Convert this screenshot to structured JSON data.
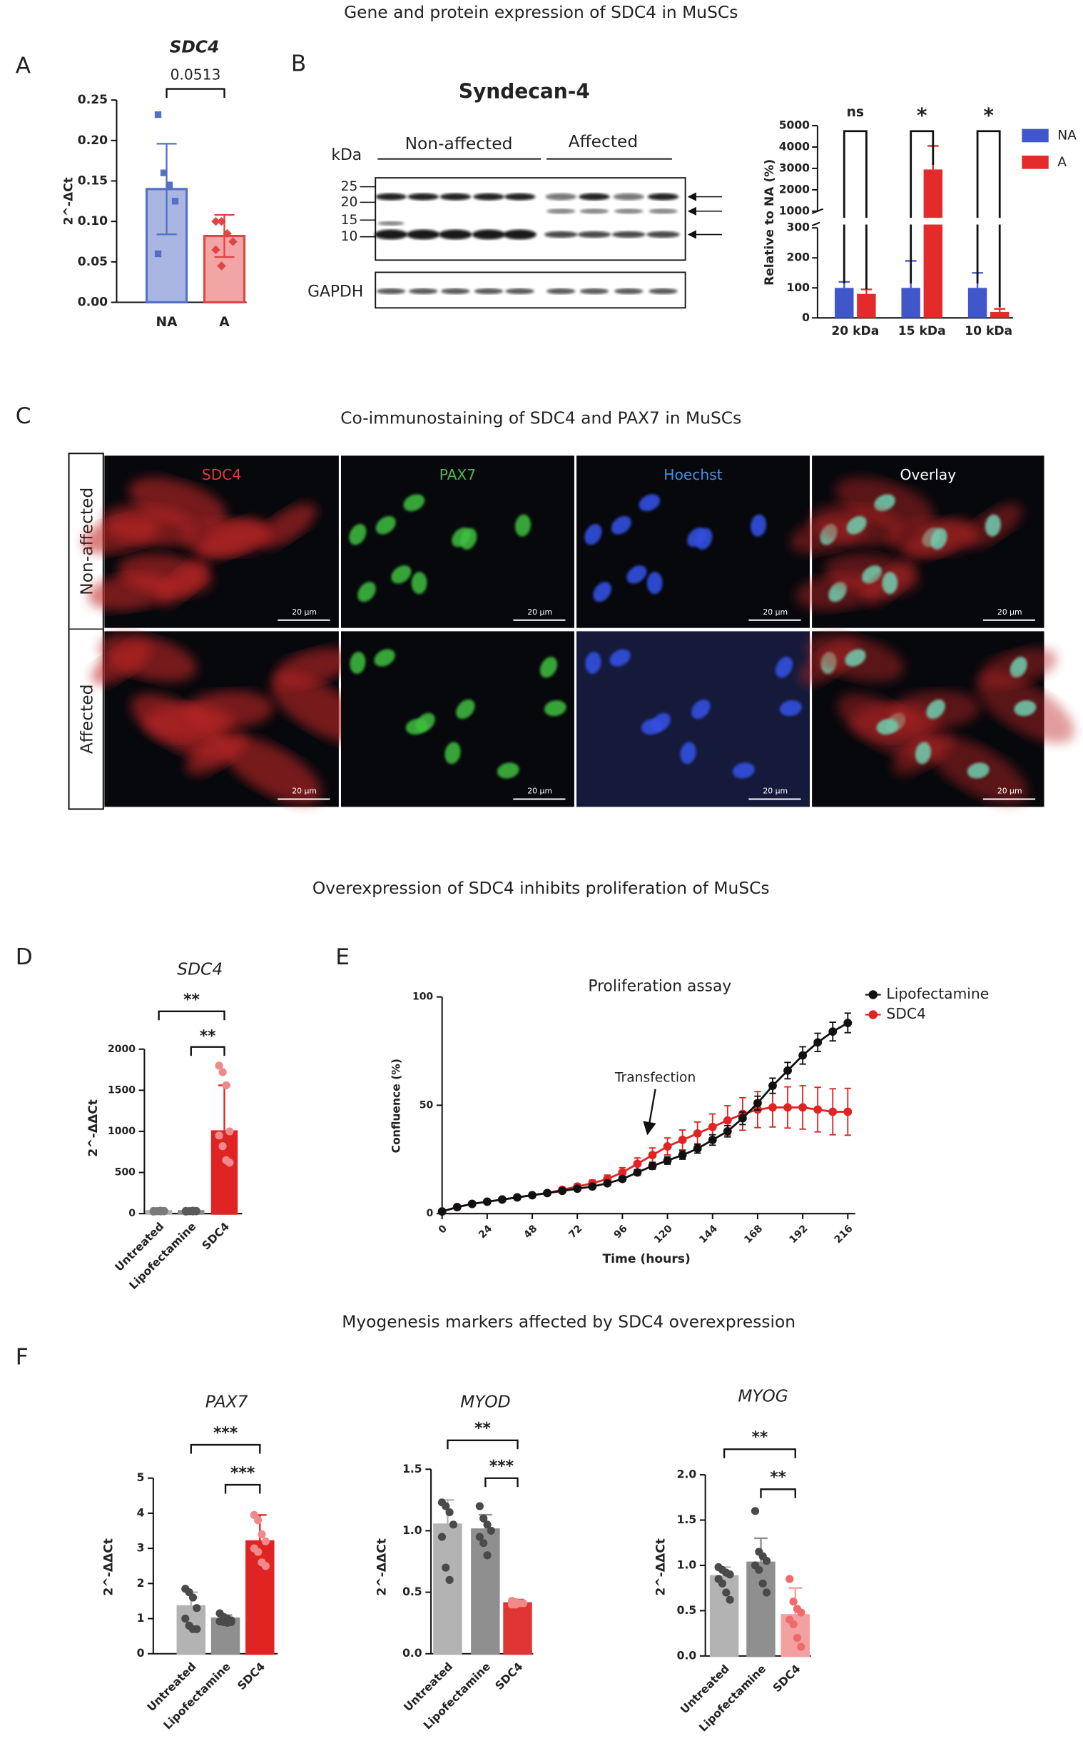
{
  "sections": [
    "Gene  and protein expression of SDC4 in MuSCs",
    "Co-immunostaining of SDC4 and PAX7 in MuSCs",
    "Overexpression of SDC4 inhibits proliferation of MuSCs",
    "Myogenesis markers affected by SDC4 overexpression"
  ],
  "panels": [
    "A",
    "B",
    "C",
    "D",
    "E",
    "F"
  ],
  "blot": {
    "title": "Syndecan-4",
    "unit": "kDa",
    "groups": [
      "Non-affected",
      "Affected"
    ],
    "markers": [
      25,
      20,
      15,
      10
    ],
    "loading": "GAPDH"
  },
  "images": {
    "channels": [
      "SDC4",
      "PAX7",
      "Hoechst",
      "Overlay"
    ],
    "rows": [
      "Non-affected",
      "Affected"
    ],
    "scale_bar": "20 µm"
  },
  "chart_data": [
    {
      "type": "bar",
      "title": "SDC4",
      "ylabel": "2^-ΔCt",
      "categories": [
        "NA",
        "A"
      ],
      "values": [
        0.14,
        0.082
      ],
      "errors": [
        0.056,
        0.026
      ],
      "points": [
        [
          0.232,
          0.16,
          0.145,
          0.125,
          0.06
        ],
        [
          0.1,
          0.1,
          0.085,
          0.075,
          0.065,
          0.045
        ]
      ],
      "colors": [
        "#a9b6e2",
        "#f2a5a5"
      ],
      "edgecolors": [
        "#5470c6",
        "#e04545"
      ],
      "point_colors": [
        "#5470c6",
        "#e04545"
      ],
      "annotations": [
        "0.0513"
      ],
      "ylim": [
        0,
        0.25
      ],
      "yticks": [
        {
          "value": 0,
          "label": "0.00"
        },
        0.05,
        {
          "value": 0.1,
          "label": "0.10"
        },
        0.15,
        {
          "value": 0.2,
          "label": "0.20"
        },
        0.25
      ]
    },
    {
      "type": "broken_bar",
      "ylabel": "Relative to  NA (%)",
      "categories": [
        "20 kDa",
        "15 kDa",
        "10 kDa"
      ],
      "series": [
        {
          "name": "NA",
          "color": "#3f57c8",
          "values": [
            100,
            100,
            100
          ],
          "errors": [
            20,
            90,
            50
          ]
        },
        {
          "name": "A",
          "color": "#e32b2b",
          "values": [
            80,
            2950,
            20
          ],
          "errors": [
            15,
            1100,
            10
          ]
        }
      ],
      "annotations": [
        "ns",
        "*",
        "*"
      ],
      "ylim_segments": [
        [
          0,
          300
        ],
        [
          1000,
          5000
        ]
      ],
      "yticks": [
        0,
        100,
        200,
        300,
        1000,
        2000,
        3000,
        4000,
        5000
      ]
    },
    {
      "type": "bar",
      "title": "SDC4",
      "ylabel": "2^-ΔΔCt",
      "categories": [
        "Untreated",
        "Lipofectamine",
        "SDC4"
      ],
      "values": [
        30,
        30,
        1000
      ],
      "errors": [
        8,
        8,
        560
      ],
      "points": [
        [
          25,
          30,
          35,
          28,
          32,
          30,
          27,
          33
        ],
        [
          25,
          30,
          35,
          28,
          32,
          30,
          27,
          33
        ],
        [
          1800,
          1720,
          1560,
          1000,
          950,
          820,
          650,
          620
        ]
      ],
      "colors": [
        "#b0b0b0",
        "#8c8c8c",
        "#e02424"
      ],
      "edgecolors": [
        "#b0b0b0",
        "#8c8c8c",
        "#e02424"
      ],
      "point_colors": [
        "#7a7a7a",
        "#5a5a5a",
        "#f08a8a"
      ],
      "annotations": [
        "**",
        "**"
      ],
      "ylim": [
        0,
        2000
      ],
      "yticks": [
        0,
        500,
        1000,
        1500,
        2000
      ]
    },
    {
      "type": "line",
      "title": "Proliferation assay",
      "xlabel": "Time (hours)",
      "ylabel": "Confluence (%)",
      "annotation": "Transfection",
      "x": [
        0,
        8,
        16,
        24,
        32,
        40,
        48,
        56,
        64,
        72,
        80,
        88,
        96,
        104,
        112,
        120,
        128,
        136,
        144,
        152,
        160,
        168,
        176,
        184,
        192,
        200,
        208,
        216
      ],
      "series": [
        {
          "name": "Lipofectamine",
          "color": "#111111",
          "values": [
            1,
            3,
            4.5,
            5.5,
            6.5,
            7.5,
            8.5,
            9.5,
            10.5,
            11.5,
            12.5,
            14,
            16,
            19,
            22,
            24.5,
            27,
            30,
            34,
            38,
            44,
            51,
            59,
            66,
            73,
            79,
            84,
            88
          ],
          "errors": [
            0.3,
            0.5,
            0.5,
            0.5,
            0.6,
            0.6,
            0.7,
            0.7,
            0.8,
            0.8,
            0.9,
            1,
            1.1,
            1.3,
            1.5,
            1.7,
            1.9,
            2.1,
            2.4,
            2.6,
            2.9,
            3.2,
            3.5,
            3.8,
            4,
            4.2,
            4.3,
            4.5
          ]
        },
        {
          "name": "SDC4",
          "color": "#e02424",
          "values": [
            1,
            3,
            4.5,
            5.5,
            6.5,
            7.5,
            8.5,
            9.5,
            11,
            12.5,
            14,
            16,
            19,
            23,
            27,
            31,
            34,
            37,
            40,
            43,
            46,
            48,
            49,
            49,
            49,
            48,
            47,
            47
          ],
          "errors": [
            0.3,
            0.5,
            0.5,
            0.5,
            0.6,
            0.6,
            0.7,
            0.8,
            1,
            1.2,
            1.5,
            1.8,
            2.2,
            2.7,
            3.3,
            3.9,
            4.6,
            5.3,
            6,
            6.8,
            7.5,
            8.3,
            9,
            9.5,
            10,
            10.3,
            10.6,
            10.8
          ]
        }
      ],
      "xlim": [
        0,
        220
      ],
      "xticks": [
        0,
        24,
        48,
        72,
        96,
        120,
        144,
        168,
        192,
        216
      ],
      "ylim": [
        0,
        100
      ],
      "yticks": [
        0,
        50,
        100
      ]
    },
    {
      "type": "bar",
      "title": "PAX7",
      "ylabel": "2^-ΔΔCt",
      "categories": [
        "Untreated",
        "Lipofectamine",
        "SDC4"
      ],
      "values": [
        1.35,
        1.0,
        3.2
      ],
      "errors": [
        0.4,
        0.1,
        0.75
      ],
      "points": [
        [
          1.85,
          1.75,
          1.6,
          1.3,
          1.0,
          0.8,
          0.7,
          0.7
        ],
        [
          1.15,
          1.05,
          1.0,
          0.95,
          0.92,
          0.9,
          0.88,
          0.9
        ],
        [
          3.95,
          3.8,
          3.4,
          3.2,
          3.0,
          2.9,
          2.6,
          2.5
        ]
      ],
      "colors": [
        "#b3b3b3",
        "#8f8f8f",
        "#e02424"
      ],
      "edgecolors": [
        "#b3b3b3",
        "#8f8f8f",
        "#e02424"
      ],
      "point_colors": [
        "#4a4a4a",
        "#4a4a4a",
        "#f08a8a"
      ],
      "annotations": [
        "***",
        "***"
      ],
      "ylim": [
        0,
        5
      ],
      "yticks": [
        0,
        1,
        2,
        3,
        4,
        5
      ]
    },
    {
      "type": "bar",
      "title": "MYOD",
      "ylabel": "2^-ΔΔCt",
      "categories": [
        "Untreated",
        "Lipofectamine",
        "SDC4"
      ],
      "values": [
        1.05,
        1.01,
        0.41
      ],
      "errors": [
        0.2,
        0.12,
        0.03
      ],
      "points": [
        [
          1.23,
          1.2,
          1.15,
          1.05,
          0.95,
          0.7,
          0.6
        ],
        [
          1.2,
          1.1,
          1.05,
          1.0,
          0.95,
          0.9,
          0.8
        ],
        [
          0.43,
          0.42,
          0.41,
          0.41,
          0.4,
          0.4
        ]
      ],
      "colors": [
        "#b3b3b3",
        "#8f8f8f",
        "#e03535"
      ],
      "edgecolors": [
        "#b3b3b3",
        "#8f8f8f",
        "#e03535"
      ],
      "point_colors": [
        "#4a4a4a",
        "#4a4a4a",
        "#f08a8a"
      ],
      "annotations": [
        "**",
        "***"
      ],
      "ylim": [
        0,
        1.5
      ],
      "yticks": [
        {
          "value": 0,
          "label": "0.0"
        },
        0.5,
        {
          "value": 1,
          "label": "1.0"
        },
        1.5
      ]
    },
    {
      "type": "bar",
      "title": "MYOG",
      "ylabel": "2^-ΔΔCt",
      "categories": [
        "Untreated",
        "Lipofectamine",
        "SDC4"
      ],
      "values": [
        0.88,
        1.03,
        0.45
      ],
      "errors": [
        0.1,
        0.27,
        0.3
      ],
      "points": [
        [
          0.98,
          0.95,
          0.92,
          0.9,
          0.85,
          0.8,
          0.7,
          0.62
        ],
        [
          1.6,
          1.15,
          1.1,
          1.05,
          1.0,
          0.95,
          0.8,
          0.7
        ],
        [
          0.85,
          0.6,
          0.52,
          0.48,
          0.4,
          0.35,
          0.2,
          0.1
        ]
      ],
      "colors": [
        "#b3b3b3",
        "#8f8f8f",
        "#f2a0a0"
      ],
      "edgecolors": [
        "#b3b3b3",
        "#8f8f8f",
        "#f2a0a0"
      ],
      "point_colors": [
        "#4a4a4a",
        "#4a4a4a",
        "#f06a6a"
      ],
      "annotations": [
        "**",
        "**"
      ],
      "ylim": [
        0,
        2
      ],
      "yticks": [
        {
          "value": 0,
          "label": "0.0"
        },
        0.5,
        {
          "value": 1,
          "label": "1.0"
        },
        1.5,
        {
          "value": 2,
          "label": "2.0"
        }
      ]
    }
  ]
}
